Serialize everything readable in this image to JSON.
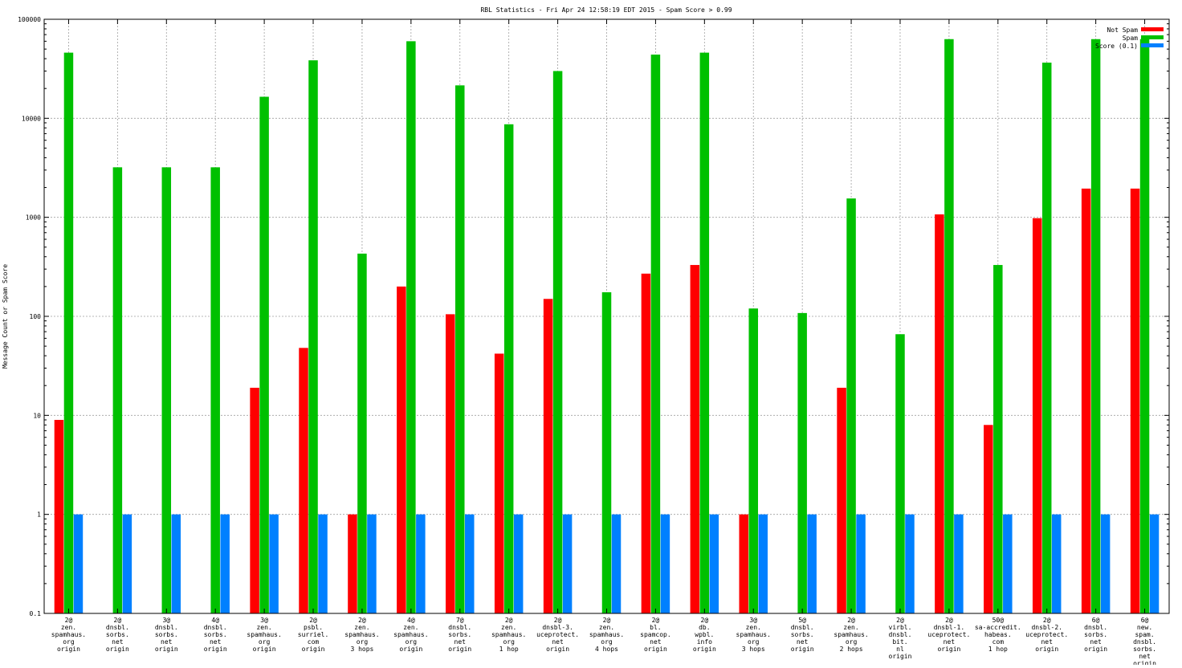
{
  "chart_data": {
    "type": "bar",
    "scale": "log",
    "title": "RBL Statistics - Fri Apr 24 12:58:19 EDT 2015 - Spam Score > 0.99",
    "xlabel": "",
    "ylabel": "Message Count or Spam Score",
    "ylim": [
      0.1,
      100000
    ],
    "yticks": [
      {
        "value": 0.1,
        "label": "0.1"
      },
      {
        "value": 1,
        "label": "1"
      },
      {
        "value": 10,
        "label": "10"
      },
      {
        "value": 100,
        "label": "100"
      },
      {
        "value": 1000,
        "label": "1000"
      },
      {
        "value": 10000,
        "label": "10000"
      },
      {
        "value": 100000,
        "label": "100000"
      }
    ],
    "legend_position": "top-right",
    "categories": [
      [
        "2@",
        "zen.",
        "spamhaus.",
        "org",
        "origin"
      ],
      [
        "2@",
        "dnsbl.",
        "sorbs.",
        "net",
        "origin"
      ],
      [
        "3@",
        "dnsbl.",
        "sorbs.",
        "net",
        "origin"
      ],
      [
        "4@",
        "dnsbl.",
        "sorbs.",
        "net",
        "origin"
      ],
      [
        "3@",
        "zen.",
        "spamhaus.",
        "org",
        "origin"
      ],
      [
        "2@",
        "psbl.",
        "surriel.",
        "com",
        "origin"
      ],
      [
        "2@",
        "zen.",
        "spamhaus.",
        "org",
        "3 hops"
      ],
      [
        "4@",
        "zen.",
        "spamhaus.",
        "org",
        "origin"
      ],
      [
        "7@",
        "dnsbl.",
        "sorbs.",
        "net",
        "origin"
      ],
      [
        "2@",
        "zen.",
        "spamhaus.",
        "org",
        "1 hop"
      ],
      [
        "2@",
        "dnsbl-3.",
        "uceprotect.",
        "net",
        "origin"
      ],
      [
        "2@",
        "zen.",
        "spamhaus.",
        "org",
        "4 hops"
      ],
      [
        "2@",
        "bl.",
        "spamcop.",
        "net",
        "origin"
      ],
      [
        "2@",
        "db.",
        "wpbl.",
        "info",
        "origin"
      ],
      [
        "3@",
        "zen.",
        "spamhaus.",
        "org",
        "3 hops"
      ],
      [
        "5@",
        "dnsbl.",
        "sorbs.",
        "net",
        "origin"
      ],
      [
        "2@",
        "zen.",
        "spamhaus.",
        "org",
        "2 hops"
      ],
      [
        "2@",
        "virbl.",
        "dnsbl.",
        "bit.",
        "nl",
        "origin"
      ],
      [
        "2@",
        "dnsbl-1.",
        "uceprotect.",
        "net",
        "origin"
      ],
      [
        "50@",
        "sa-accredit.",
        "habeas.",
        "com",
        "1 hop"
      ],
      [
        "2@",
        "dnsbl-2.",
        "uceprotect.",
        "net",
        "origin"
      ],
      [
        "6@",
        "dnsbl.",
        "sorbs.",
        "net",
        "origin"
      ],
      [
        "6@",
        "new.",
        "spam.",
        "dnsbl.",
        "sorbs.",
        "net",
        "origin"
      ]
    ],
    "series": [
      {
        "name": "Not Spam",
        "color": "#ff0000",
        "values": [
          9,
          null,
          null,
          null,
          19,
          48,
          1,
          200,
          105,
          42,
          150,
          null,
          270,
          330,
          1,
          null,
          19,
          null,
          1070,
          8,
          980,
          1950,
          1950
        ]
      },
      {
        "name": "Spam",
        "color": "#00c000",
        "values": [
          46000,
          3200,
          3200,
          3200,
          16500,
          38500,
          430,
          60000,
          21500,
          8700,
          30000,
          175,
          44000,
          46000,
          120,
          108,
          1550,
          66,
          63000,
          330,
          36500,
          63000,
          63000
        ]
      },
      {
        "name": "Score (0.1)",
        "color": "#0080ff",
        "values": [
          1,
          1,
          1,
          1,
          1,
          1,
          1,
          1,
          1,
          1,
          1,
          1,
          1,
          1,
          1,
          1,
          1,
          1,
          1,
          1,
          1,
          1,
          1
        ]
      }
    ]
  }
}
